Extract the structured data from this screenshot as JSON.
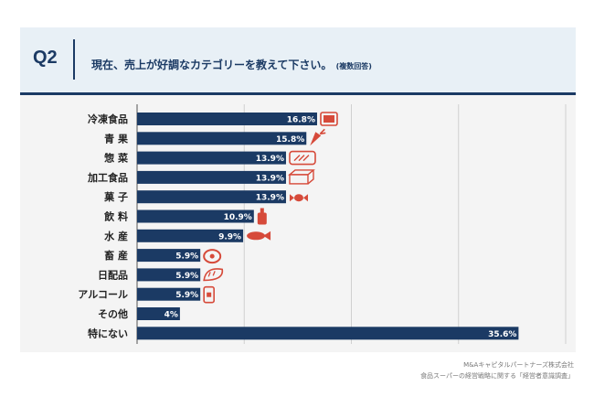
{
  "header": {
    "q_label": "Q2",
    "question": "現在、売上が好調なカテゴリーを教えて下さい。",
    "question_note": "(複数回答)"
  },
  "chart_data": {
    "type": "bar",
    "orientation": "horizontal",
    "categories": [
      "冷凍食品",
      "青 果",
      "惣 菜",
      "加工食品",
      "菓 子",
      "飲 料",
      "水 産",
      "畜 産",
      "日配品",
      "アルコール",
      "その他",
      "特にない"
    ],
    "values": [
      16.8,
      15.8,
      13.9,
      13.9,
      13.9,
      10.9,
      9.9,
      5.9,
      5.9,
      5.9,
      4,
      35.6
    ],
    "value_labels": [
      "16.8%",
      "15.8%",
      "13.9%",
      "13.9%",
      "13.9%",
      "10.9%",
      "9.9%",
      "5.9%",
      "5.9%",
      "5.9%",
      "4%",
      "35.6%"
    ],
    "icons": [
      "frozen-food-package-icon",
      "carrot-icon",
      "bento-box-icon",
      "canned-food-icon",
      "candy-icon",
      "bottle-icon",
      "fish-icon",
      "meat-icon",
      "bread-icon",
      "can-icon",
      "",
      ""
    ],
    "xlim": [
      0,
      40
    ],
    "grid": true,
    "bar_color": "#1b3a64",
    "icon_color": "#d64a3a"
  },
  "source": {
    "line1": "M&Aキャピタルパートナーズ株式会社",
    "line2": "食品スーパーの経営戦略に関する「経営者意識調査」"
  }
}
